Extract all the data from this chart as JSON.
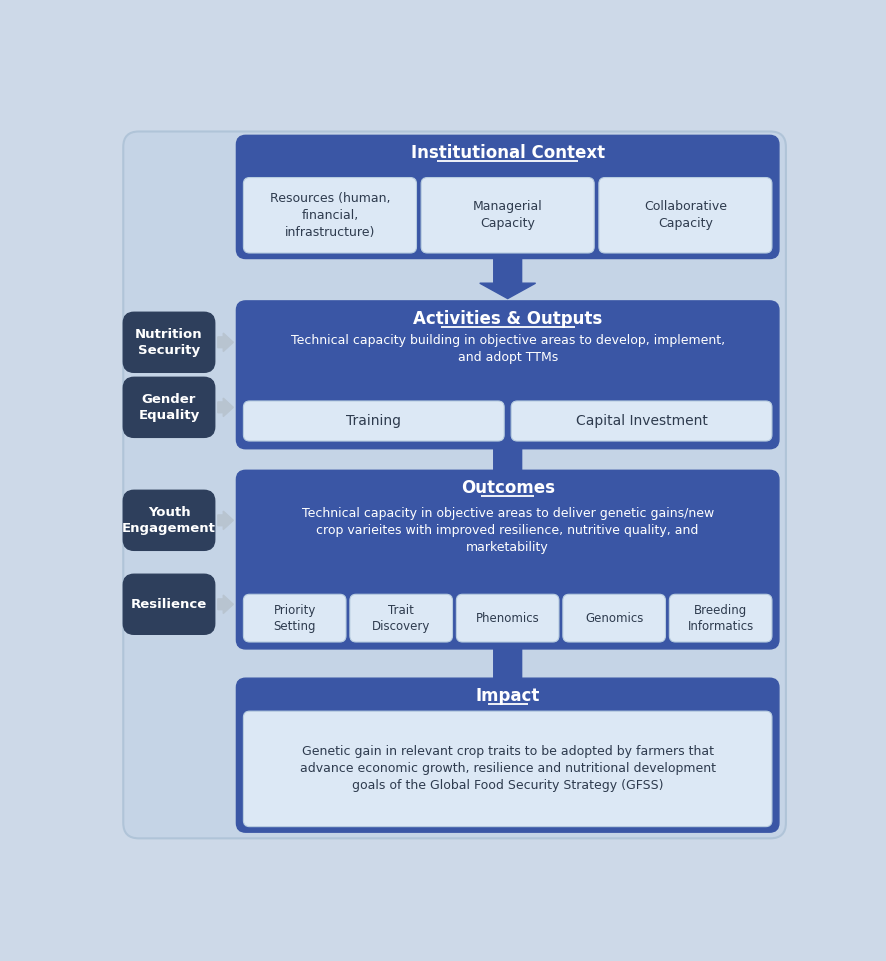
{
  "background_color": "#cdd9e8",
  "main_blue": "#3a56a5",
  "dark_blue_box": "#2e3f5c",
  "light_inner_box": "#dce8f5",
  "inner_edge": "#b8cde0",
  "arrow_blue": "#3a56a5",
  "arrow_gray": "#b8c4d0",
  "white_text": "#ffffff",
  "dark_text": "#2e3b4e",
  "title": "Institutional Context",
  "ic_sub_boxes": [
    "Resources (human,\nfinancial,\ninfrastructure)",
    "Managerial\nCapacity",
    "Collaborative\nCapacity"
  ],
  "ao_title": "Activities & Outputs",
  "ao_subtitle": "Technical capacity building in objective areas to develop, implement,\nand adopt TTMs",
  "ao_sub_boxes": [
    "Training",
    "Capital Investment"
  ],
  "oc_title": "Outcomes",
  "oc_subtitle": "Technical capacity in objective areas to deliver genetic gains/new\ncrop varieites with improved resilience, nutritive quality, and\nmarketability",
  "oc_sub_boxes": [
    "Priority\nSetting",
    "Trait\nDiscovery",
    "Phenomics",
    "Genomics",
    "Breeding\nInformatics"
  ],
  "impact_title": "Impact",
  "impact_subtitle": "Genetic gain in relevant crop traits to be adopted by farmers that\nadvance economic growth, resilience and nutritional development\ngoals of the Global Food Security Strategy (GFSS)",
  "left_boxes": [
    "Nutrition\nSecurity",
    "Gender\nEquality",
    "Youth\nEngagement",
    "Resilience"
  ]
}
